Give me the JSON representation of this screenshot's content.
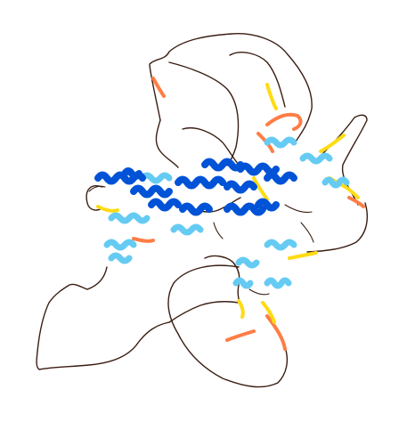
{
  "image": {
    "kind": "protein-structure-render",
    "background": "#ffffff",
    "palette": {
      "very_high": "#0053d6",
      "confident": "#65cbf3",
      "low": "#ffdb13",
      "very_low": "#ff7d45",
      "coil": "#3a1d12"
    }
  }
}
